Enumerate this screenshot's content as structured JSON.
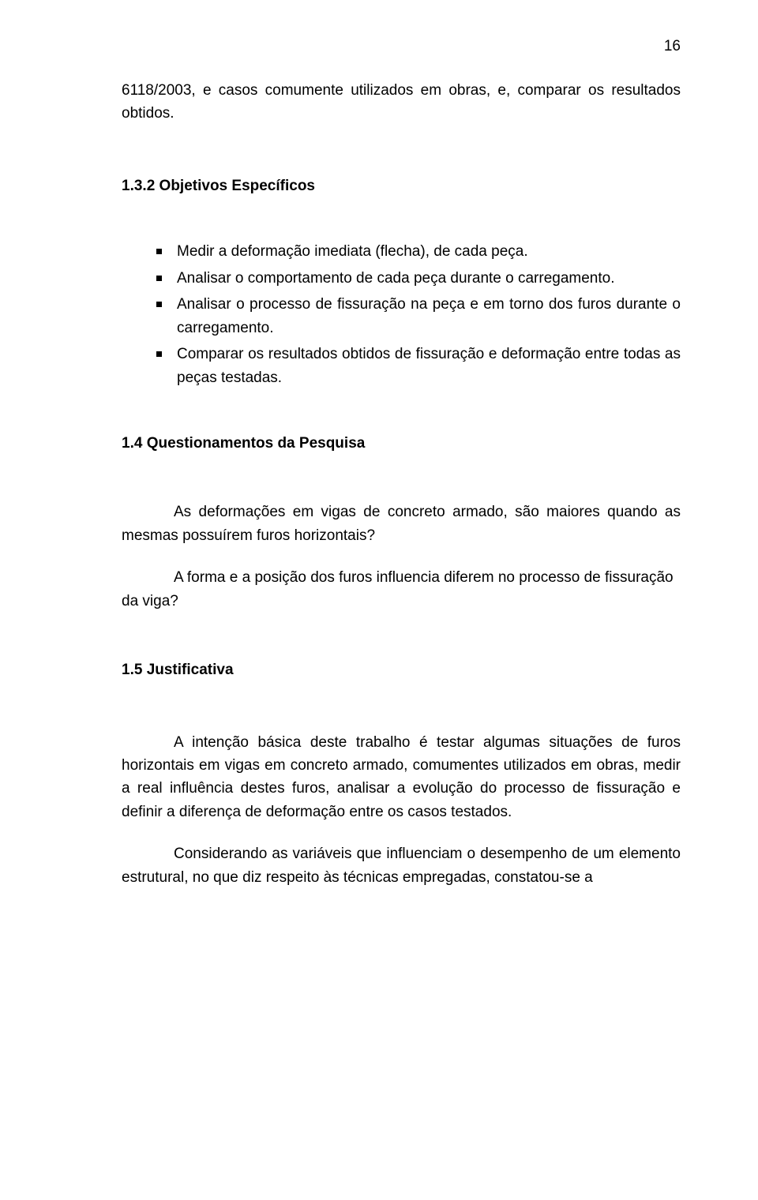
{
  "page_number": "16",
  "intro_paragraph": "6118/2003, e casos  comumente utilizados em obras, e, comparar os resultados obtidos.",
  "heading_objetivos": "1.3.2  Objetivos Específicos",
  "bullets": [
    "Medir a deformação imediata (flecha), de cada peça.",
    "Analisar o comportamento de cada peça durante o carregamento.",
    "Analisar o processo de fissuração na peça e em torno dos furos durante o carregamento.",
    "Comparar os resultados obtidos de fissuração e deformação entre todas as peças testadas."
  ],
  "heading_questionamentos": "1.4  Questionamentos da Pesquisa",
  "q_para1": "As deformações em vigas de concreto armado, são maiores quando as mesmas possuírem furos horizontais?",
  "q_para2": "A forma e a posição dos furos influencia diferem no processo de fissuração da viga?",
  "heading_justificativa": "1.5 Justificativa",
  "j_para1": "A intenção básica deste trabalho é testar algumas situações de furos horizontais em vigas em concreto armado, comumentes utilizados em obras, medir a real influência destes furos, analisar a evolução do processo de fissuração e definir a diferença de deformação entre os casos testados.",
  "j_para2": "Considerando as variáveis que influenciam o desempenho de um elemento estrutural, no que diz respeito às técnicas empregadas, constatou-se a"
}
